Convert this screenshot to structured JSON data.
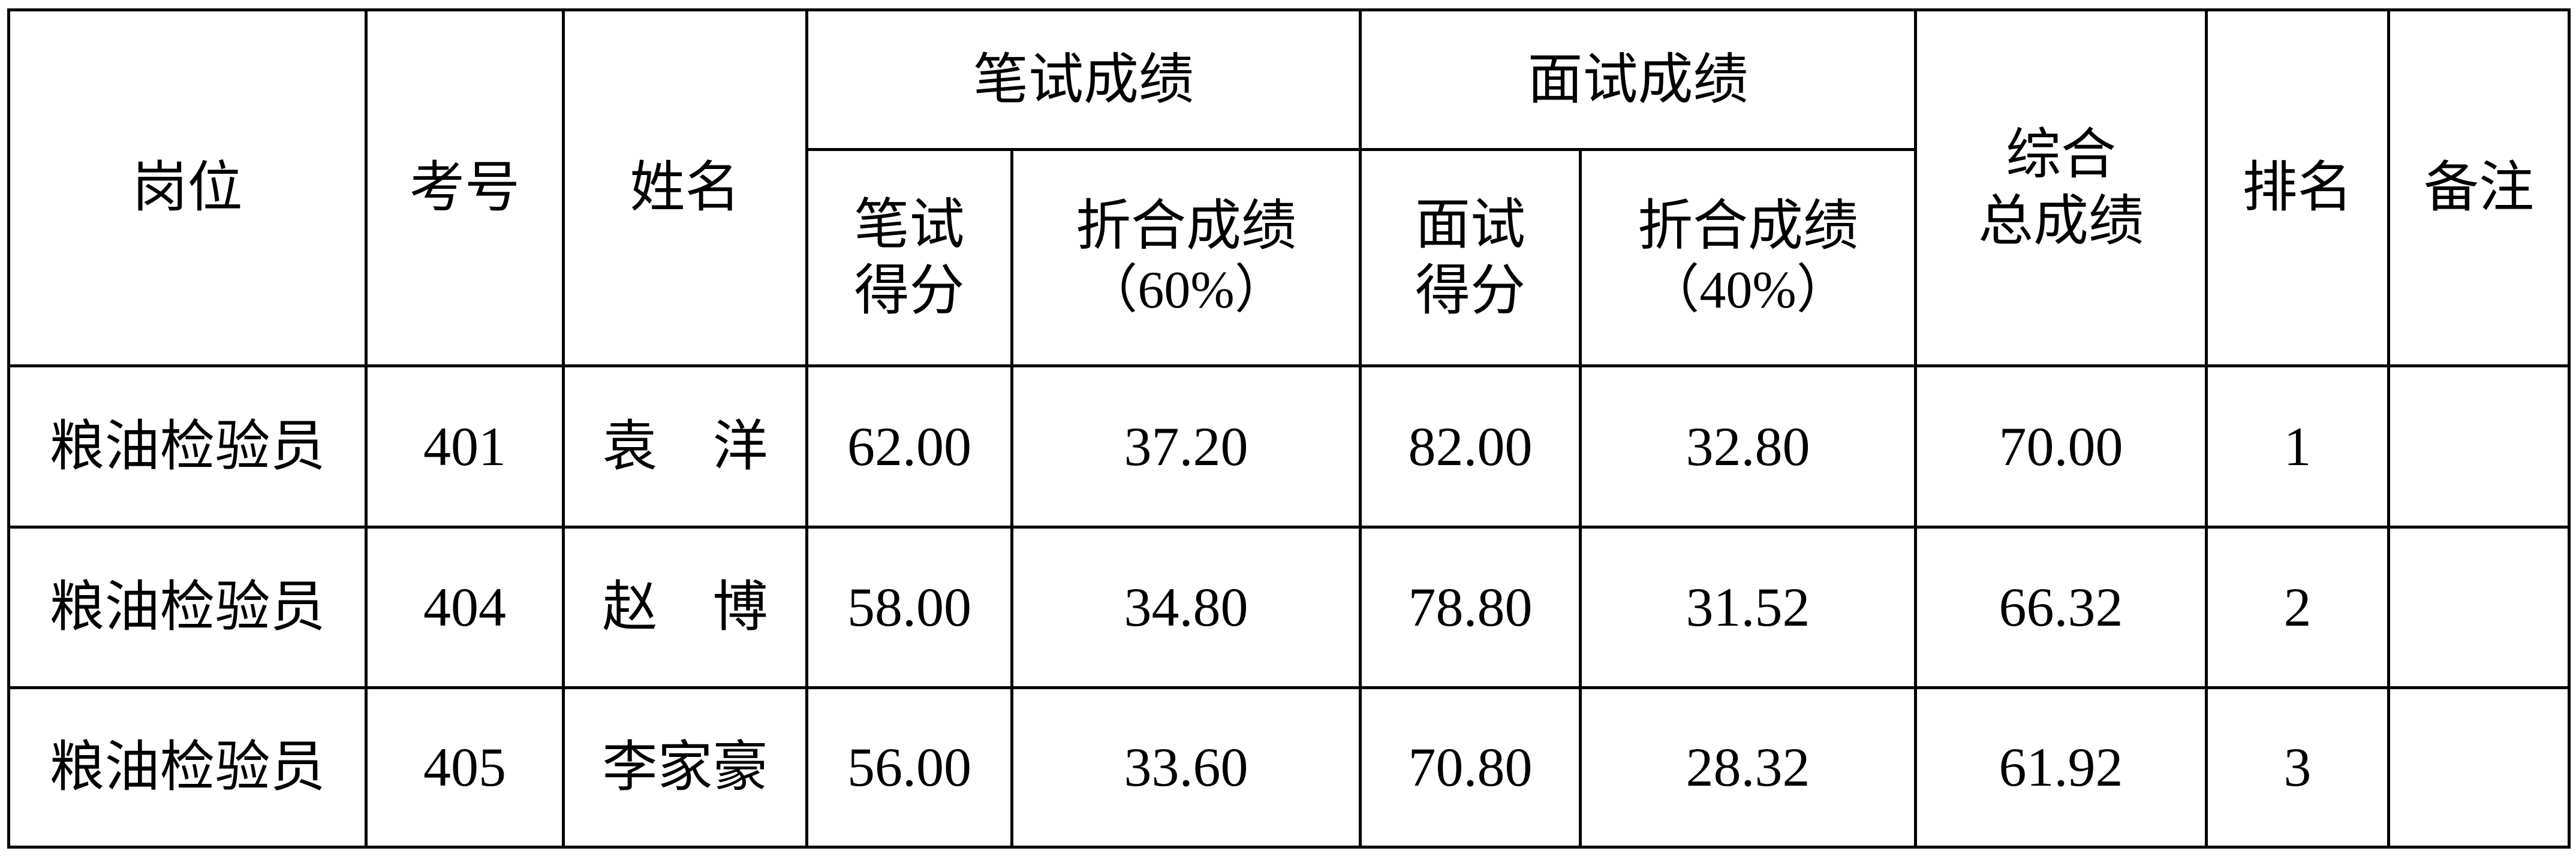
{
  "table": {
    "headers": {
      "position": "岗位",
      "exam_no": "考号",
      "name": "姓名",
      "written_group": "笔试成绩",
      "interview_group": "面试成绩",
      "written_score": "笔试得分",
      "written_converted": "折合成绩",
      "written_pct": "（60%）",
      "interview_score": "面试得分",
      "interview_converted": "折合成绩",
      "interview_pct": "（40%）",
      "total_line1": "综合",
      "total_line2": "总成绩",
      "rank": "排名",
      "remarks": "备注"
    },
    "rows": [
      {
        "position": "粮油检验员",
        "exam_no": "401",
        "name": "袁　洋",
        "written_score": "62.00",
        "written_converted": "37.20",
        "interview_score": "82.00",
        "interview_converted": "32.80",
        "total": "70.00",
        "rank": "1",
        "remarks": ""
      },
      {
        "position": "粮油检验员",
        "exam_no": "404",
        "name": "赵　博",
        "written_score": "58.00",
        "written_converted": "34.80",
        "interview_score": "78.80",
        "interview_converted": "31.52",
        "total": "66.32",
        "rank": "2",
        "remarks": ""
      },
      {
        "position": "粮油检验员",
        "exam_no": "405",
        "name": "李家豪",
        "written_score": "56.00",
        "written_converted": "33.60",
        "interview_score": "70.80",
        "interview_converted": "28.32",
        "total": "61.92",
        "rank": "3",
        "remarks": ""
      }
    ]
  }
}
